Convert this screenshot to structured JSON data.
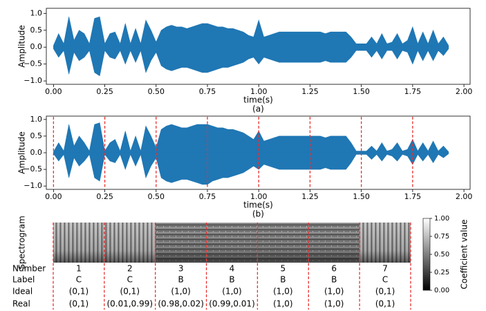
{
  "chart_data": [
    {
      "type": "area",
      "ylabel": "Amplitude",
      "xlabel": "time(s)",
      "caption": "(a)",
      "color": "#1f77b4",
      "xlim": [
        -0.035,
        2.03
      ],
      "ylim": [
        -1.1,
        1.15
      ],
      "xticks": [
        {
          "value": 0,
          "label": "0.00"
        },
        {
          "value": 0.25,
          "label": "0.25"
        },
        {
          "value": 0.5,
          "label": "0.50"
        },
        {
          "value": 0.75,
          "label": "0.75"
        },
        {
          "value": 1,
          "label": "1.00"
        },
        {
          "value": 1.25,
          "label": "1.25"
        },
        {
          "value": 1.5,
          "label": "1.50"
        },
        {
          "value": 1.75,
          "label": "1.75"
        },
        {
          "value": 2,
          "label": "2.00"
        }
      ],
      "yticks": [
        {
          "value": -1,
          "label": "−1.0"
        },
        {
          "value": -0.5,
          "label": "−0.5"
        },
        {
          "value": 0,
          "label": "0.0"
        },
        {
          "value": 0.5,
          "label": "0.5"
        },
        {
          "value": 1,
          "label": "1.0"
        }
      ],
      "x": [
        0,
        0.025,
        0.05,
        0.075,
        0.1,
        0.125,
        0.15,
        0.175,
        0.2,
        0.225,
        0.25,
        0.275,
        0.3,
        0.325,
        0.35,
        0.375,
        0.4,
        0.425,
        0.45,
        0.475,
        0.5,
        0.525,
        0.55,
        0.575,
        0.6,
        0.625,
        0.65,
        0.675,
        0.7,
        0.725,
        0.75,
        0.775,
        0.8,
        0.825,
        0.85,
        0.875,
        0.9,
        0.925,
        0.95,
        0.975,
        1,
        1.025,
        1.05,
        1.075,
        1.1,
        1.125,
        1.15,
        1.175,
        1.2,
        1.225,
        1.25,
        1.275,
        1.3,
        1.325,
        1.35,
        1.375,
        1.4,
        1.425,
        1.45,
        1.475,
        1.5,
        1.525,
        1.55,
        1.575,
        1.6,
        1.625,
        1.65,
        1.675,
        1.7,
        1.725,
        1.75,
        1.775,
        1.8,
        1.825,
        1.85,
        1.875,
        1.9,
        1.925
      ],
      "series": [
        {
          "color": "#1f77b4",
          "values": [
            0.05,
            0.4,
            0.1,
            0.9,
            0.2,
            0.5,
            0.4,
            0.1,
            0.85,
            0.9,
            0.1,
            0.4,
            0.45,
            0.1,
            0.7,
            0.1,
            0.55,
            0.1,
            0.8,
            0.5,
            0.15,
            0.5,
            0.6,
            0.65,
            0.6,
            0.6,
            0.55,
            0.6,
            0.65,
            0.7,
            0.7,
            0.65,
            0.6,
            0.6,
            0.55,
            0.55,
            0.5,
            0.45,
            0.35,
            0.3,
            0.8,
            0.3,
            0.35,
            0.4,
            0.45,
            0.45,
            0.45,
            0.45,
            0.45,
            0.45,
            0.45,
            0.45,
            0.45,
            0.4,
            0.45,
            0.45,
            0.45,
            0.45,
            0.3,
            0.1,
            0.1,
            0.1,
            0.3,
            0.1,
            0.4,
            0.1,
            0.15,
            0.4,
            0.1,
            0.2,
            0.6,
            0.1,
            0.45,
            0.1,
            0.5,
            0.1,
            0.3,
            0.05
          ]
        },
        {
          "color": "#1f77b4",
          "values": [
            -0.05,
            -0.3,
            -0.1,
            -0.8,
            -0.15,
            -0.4,
            -0.3,
            -0.1,
            -0.75,
            -0.85,
            -0.1,
            -0.3,
            -0.35,
            -0.1,
            -0.5,
            -0.1,
            -0.45,
            -0.1,
            -0.75,
            -0.4,
            -0.15,
            -0.55,
            -0.65,
            -0.7,
            -0.65,
            -0.6,
            -0.6,
            -0.65,
            -0.7,
            -0.75,
            -0.75,
            -0.7,
            -0.65,
            -0.6,
            -0.6,
            -0.55,
            -0.5,
            -0.45,
            -0.35,
            -0.3,
            -0.5,
            -0.3,
            -0.35,
            -0.4,
            -0.45,
            -0.45,
            -0.45,
            -0.45,
            -0.45,
            -0.45,
            -0.45,
            -0.45,
            -0.45,
            -0.4,
            -0.45,
            -0.45,
            -0.45,
            -0.45,
            -0.3,
            -0.1,
            -0.1,
            -0.1,
            -0.3,
            -0.1,
            -0.35,
            -0.1,
            -0.1,
            -0.35,
            -0.1,
            -0.15,
            -0.5,
            -0.1,
            -0.4,
            -0.1,
            -0.4,
            -0.1,
            -0.25,
            -0.05
          ]
        }
      ]
    },
    {
      "type": "area",
      "ylabel": "Amplitude",
      "xlabel": "time(s)",
      "caption": "(b)",
      "color": "#1f77b4",
      "xlim": [
        -0.035,
        2.03
      ],
      "ylim": [
        -1.1,
        1.1
      ],
      "xticks": [
        {
          "value": 0,
          "label": "0.00"
        },
        {
          "value": 0.25,
          "label": "0.25"
        },
        {
          "value": 0.5,
          "label": "0.50"
        },
        {
          "value": 0.75,
          "label": "0.75"
        },
        {
          "value": 1,
          "label": "1.00"
        },
        {
          "value": 1.25,
          "label": "1.25"
        },
        {
          "value": 1.5,
          "label": "1.50"
        },
        {
          "value": 1.75,
          "label": "1.75"
        },
        {
          "value": 2,
          "label": "2.00"
        }
      ],
      "yticks": [
        {
          "value": -1,
          "label": "−1.0"
        },
        {
          "value": -0.5,
          "label": "−0.5"
        },
        {
          "value": 0,
          "label": "0.0"
        },
        {
          "value": 0.5,
          "label": "0.5"
        },
        {
          "value": 1,
          "label": "1.0"
        }
      ],
      "vlines": [
        0,
        0.25,
        0.5,
        0.75,
        1,
        1.25,
        1.5,
        1.75
      ],
      "vline_color": "#e8312f",
      "x": [
        0,
        0.025,
        0.05,
        0.075,
        0.1,
        0.125,
        0.15,
        0.175,
        0.2,
        0.225,
        0.25,
        0.275,
        0.3,
        0.325,
        0.35,
        0.375,
        0.4,
        0.425,
        0.45,
        0.475,
        0.5,
        0.525,
        0.55,
        0.575,
        0.6,
        0.625,
        0.65,
        0.675,
        0.7,
        0.725,
        0.75,
        0.775,
        0.8,
        0.825,
        0.85,
        0.875,
        0.9,
        0.925,
        0.95,
        0.975,
        1,
        1.025,
        1.05,
        1.075,
        1.1,
        1.125,
        1.15,
        1.175,
        1.2,
        1.225,
        1.25,
        1.275,
        1.3,
        1.325,
        1.35,
        1.375,
        1.4,
        1.425,
        1.45,
        1.475,
        1.5,
        1.525,
        1.55,
        1.575,
        1.6,
        1.625,
        1.65,
        1.675,
        1.7,
        1.725,
        1.75,
        1.775,
        1.8,
        1.825,
        1.85,
        1.875,
        1.9,
        1.925
      ],
      "series": [
        {
          "color": "#1f77b4",
          "values": [
            0.03,
            0.3,
            0.05,
            0.85,
            0.2,
            0.5,
            0.3,
            0.05,
            0.85,
            0.9,
            0.05,
            0.3,
            0.4,
            0.05,
            0.65,
            0.05,
            0.5,
            0.05,
            0.8,
            0.5,
            0.15,
            0.7,
            0.8,
            0.85,
            0.8,
            0.75,
            0.75,
            0.8,
            0.85,
            0.85,
            0.85,
            0.8,
            0.75,
            0.75,
            0.7,
            0.7,
            0.65,
            0.6,
            0.5,
            0.4,
            0.65,
            0.35,
            0.4,
            0.45,
            0.5,
            0.5,
            0.5,
            0.5,
            0.5,
            0.5,
            0.5,
            0.5,
            0.5,
            0.45,
            0.5,
            0.5,
            0.5,
            0.5,
            0.3,
            0.05,
            0.05,
            0.05,
            0.2,
            0.05,
            0.3,
            0.05,
            0.1,
            0.3,
            0.05,
            0.1,
            0.4,
            0.05,
            0.3,
            0.05,
            0.35,
            0.05,
            0.2,
            0.03
          ]
        },
        {
          "color": "#1f77b4",
          "values": [
            -0.03,
            -0.25,
            -0.05,
            -0.75,
            -0.15,
            -0.4,
            -0.25,
            -0.05,
            -0.75,
            -0.85,
            -0.05,
            -0.25,
            -0.3,
            -0.05,
            -0.5,
            -0.05,
            -0.4,
            -0.05,
            -0.75,
            -0.4,
            -0.15,
            -0.75,
            -0.85,
            -0.9,
            -0.85,
            -0.8,
            -0.8,
            -0.85,
            -0.9,
            -0.95,
            -0.95,
            -0.85,
            -0.8,
            -0.75,
            -0.75,
            -0.7,
            -0.65,
            -0.6,
            -0.5,
            -0.4,
            -0.5,
            -0.35,
            -0.4,
            -0.45,
            -0.5,
            -0.5,
            -0.5,
            -0.5,
            -0.5,
            -0.5,
            -0.5,
            -0.5,
            -0.5,
            -0.45,
            -0.5,
            -0.5,
            -0.5,
            -0.5,
            -0.3,
            -0.05,
            -0.05,
            -0.05,
            -0.2,
            -0.05,
            -0.25,
            -0.05,
            -0.1,
            -0.25,
            -0.05,
            -0.1,
            -0.35,
            -0.05,
            -0.25,
            -0.05,
            -0.3,
            -0.05,
            -0.15,
            -0.03
          ]
        }
      ]
    },
    {
      "type": "spectrogram",
      "ylabel": "Spectrogram",
      "colorbar_label": "Coefficient value",
      "separator_color": "#e8312f",
      "colorbar_lim": [
        0,
        1
      ],
      "colorbar_ticks": [
        {
          "value": 0,
          "label": "0.00"
        },
        {
          "value": 0.25,
          "label": "0.25"
        },
        {
          "value": 0.5,
          "label": "0.50"
        },
        {
          "value": 0.75,
          "label": "0.75"
        },
        {
          "value": 1,
          "label": "1.00"
        }
      ],
      "row_labels": [
        "Number",
        "Label",
        "Ideal",
        "Real"
      ],
      "segments": {
        "number": [
          1,
          2,
          3,
          4,
          5,
          6,
          7
        ],
        "label": [
          "C",
          "C",
          "B",
          "B",
          "B",
          "B",
          "C"
        ],
        "ideal": [
          "(0,1)",
          "(0,1)",
          "(1,0)",
          "(1,0)",
          "(1,0)",
          "(1,0)",
          "(0,1)"
        ],
        "real": [
          "(0,1)",
          "(0.01,0.99)",
          "(0.98,0.02)",
          "(0.99,0.01)",
          "(1,0)",
          "(1,0)",
          "(0,1)"
        ]
      }
    }
  ]
}
